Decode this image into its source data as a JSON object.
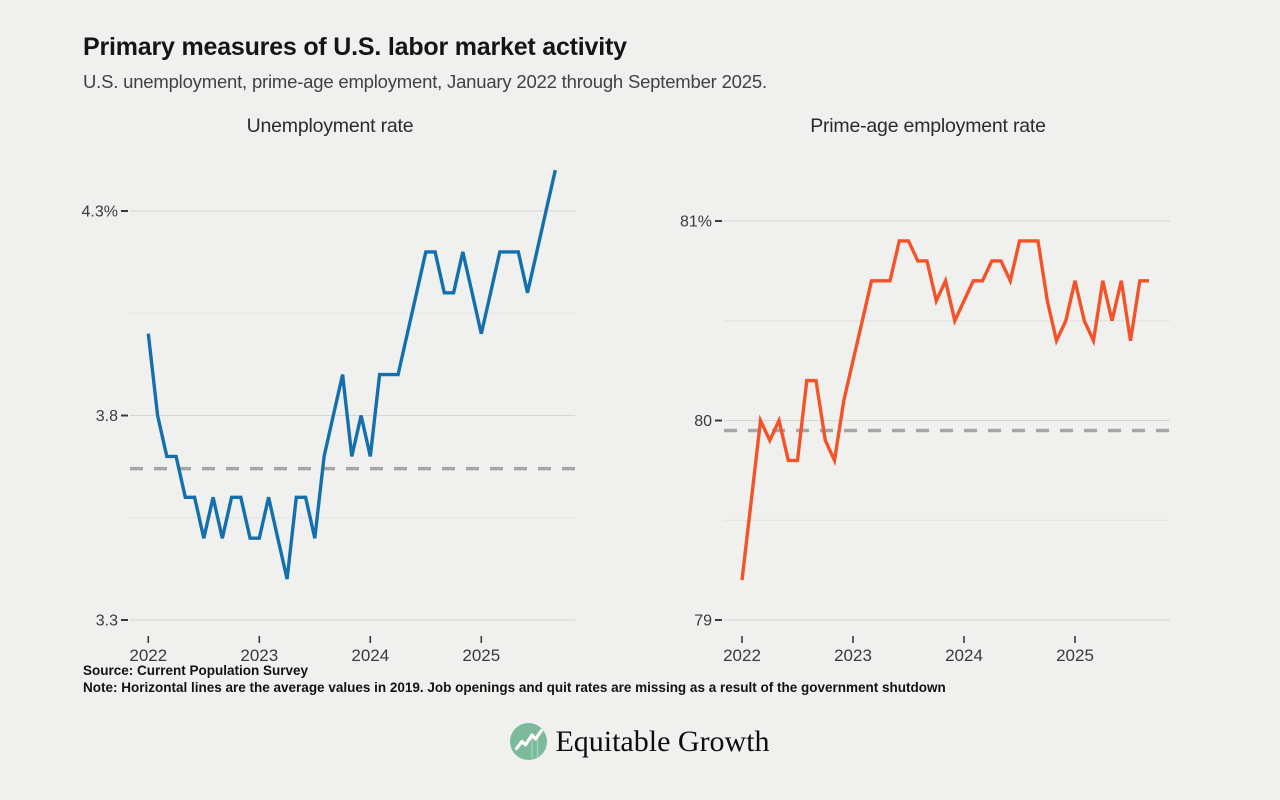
{
  "header": {
    "title": "Primary measures of U.S. labor market activity",
    "subtitle": "U.S. unemployment, prime-age employment, January 2022 through September 2025."
  },
  "chart_data": [
    {
      "type": "line",
      "title": "Unemployment rate",
      "y_unit": "percent",
      "ylim": [
        3.3,
        4.3
      ],
      "grid": "horizontal",
      "legend": "none",
      "categories": [
        "2022-01",
        "2022-02",
        "2022-03",
        "2022-04",
        "2022-05",
        "2022-06",
        "2022-07",
        "2022-08",
        "2022-09",
        "2022-10",
        "2022-11",
        "2022-12",
        "2023-01",
        "2023-02",
        "2023-03",
        "2023-04",
        "2023-05",
        "2023-06",
        "2023-07",
        "2023-08",
        "2023-09",
        "2023-10",
        "2023-11",
        "2023-12",
        "2024-01",
        "2024-02",
        "2024-03",
        "2024-04",
        "2024-05",
        "2024-06",
        "2024-07",
        "2024-08",
        "2024-09",
        "2024-10",
        "2024-11",
        "2024-12",
        "2025-01",
        "2025-02",
        "2025-03",
        "2025-04",
        "2025-05",
        "2025-06",
        "2025-07",
        "2025-08",
        "2025-09"
      ],
      "series": [
        {
          "name": "Unemployment rate",
          "color": "#1470ad",
          "values": [
            4.0,
            3.8,
            3.7,
            3.7,
            3.6,
            3.6,
            3.5,
            3.6,
            3.5,
            3.6,
            3.6,
            3.5,
            3.5,
            3.6,
            3.5,
            3.4,
            3.6,
            3.6,
            3.5,
            3.7,
            3.8,
            3.9,
            3.7,
            3.8,
            3.7,
            3.9,
            3.9,
            3.9,
            4.0,
            4.1,
            4.2,
            4.2,
            4.1,
            4.1,
            4.2,
            4.1,
            4.0,
            4.1,
            4.2,
            4.2,
            4.2,
            4.1,
            4.2,
            4.3,
            4.4
          ]
        }
      ],
      "y_ticks": [
        {
          "value": 4.3,
          "label": "4.3%"
        },
        {
          "value": 3.8,
          "label": "3.8"
        },
        {
          "value": 3.3,
          "label": "3.3"
        }
      ],
      "y_minor_gridlines": [
        4.05,
        3.55
      ],
      "x_ticks": [
        {
          "index": 0,
          "label": "2022"
        },
        {
          "index": 12,
          "label": "2023"
        },
        {
          "index": 24,
          "label": "2024"
        },
        {
          "index": 36,
          "label": "2025"
        }
      ],
      "reference_line": {
        "value": 3.67,
        "style": "dashed",
        "represents": "2019 average"
      }
    },
    {
      "type": "line",
      "title": "Prime-age employment rate",
      "y_unit": "percent",
      "ylim": [
        79,
        81
      ],
      "grid": "horizontal",
      "legend": "none",
      "categories": [
        "2022-01",
        "2022-02",
        "2022-03",
        "2022-04",
        "2022-05",
        "2022-06",
        "2022-07",
        "2022-08",
        "2022-09",
        "2022-10",
        "2022-11",
        "2022-12",
        "2023-01",
        "2023-02",
        "2023-03",
        "2023-04",
        "2023-05",
        "2023-06",
        "2023-07",
        "2023-08",
        "2023-09",
        "2023-10",
        "2023-11",
        "2023-12",
        "2024-01",
        "2024-02",
        "2024-03",
        "2024-04",
        "2024-05",
        "2024-06",
        "2024-07",
        "2024-08",
        "2024-09",
        "2024-10",
        "2024-11",
        "2024-12",
        "2025-01",
        "2025-02",
        "2025-03",
        "2025-04",
        "2025-05",
        "2025-06",
        "2025-07",
        "2025-08",
        "2025-09"
      ],
      "series": [
        {
          "name": "Prime-age employment rate",
          "color": "#f45329",
          "values": [
            79.2,
            79.6,
            80.0,
            79.9,
            80.0,
            79.8,
            79.8,
            80.2,
            80.2,
            79.9,
            79.8,
            80.1,
            80.3,
            80.5,
            80.7,
            80.7,
            80.7,
            80.9,
            80.9,
            80.8,
            80.8,
            80.6,
            80.7,
            80.5,
            80.6,
            80.7,
            80.7,
            80.8,
            80.8,
            80.7,
            80.9,
            80.9,
            80.9,
            80.6,
            80.4,
            80.5,
            80.7,
            80.5,
            80.4,
            80.7,
            80.5,
            80.7,
            80.4,
            80.7,
            80.7
          ]
        }
      ],
      "y_ticks": [
        {
          "value": 81,
          "label": "81%"
        },
        {
          "value": 80,
          "label": "80"
        },
        {
          "value": 79,
          "label": "79"
        }
      ],
      "y_minor_gridlines": [
        80.5,
        79.5
      ],
      "x_ticks": [
        {
          "index": 0,
          "label": "2022"
        },
        {
          "index": 12,
          "label": "2023"
        },
        {
          "index": 24,
          "label": "2024"
        },
        {
          "index": 36,
          "label": "2025"
        }
      ],
      "reference_line": {
        "value": 79.95,
        "style": "dashed",
        "represents": "2019 average"
      }
    }
  ],
  "footer": {
    "source": "Source: Current Population Survey",
    "note": "Note: Horizontal lines are the average values in 2019. Job openings and quit rates are missing as a result of the government shutdown",
    "logo_text": "Equitable Growth"
  },
  "colors": {
    "background": "#f0f0ee",
    "grid_major": "#d7d6d4",
    "grid_minor": "#e3e2e0",
    "reference_dash": "#a6a6a6",
    "axis_text": "#3a3a3a",
    "unemployment_line": "#1470ad",
    "prime_age_line": "#f45329",
    "logo_green": "#7cba9c"
  }
}
